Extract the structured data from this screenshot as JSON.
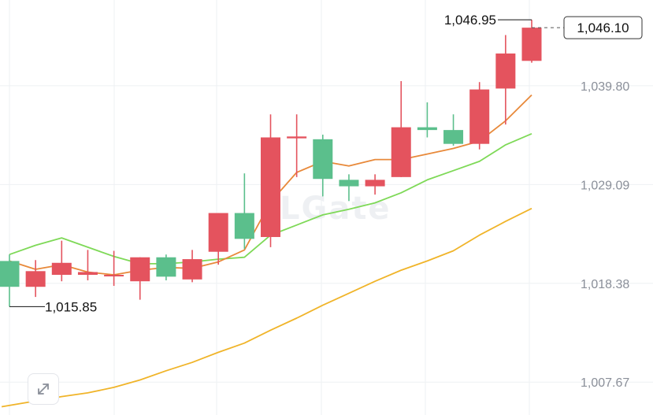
{
  "chart_data": {
    "type": "candlestick",
    "colors": {
      "up": "#e4535e",
      "down": "#5bbf8c",
      "ma_short": "#e8893a",
      "ma_mid": "#7ed957",
      "ma_long": "#f0b429",
      "grid": "#eef0f3",
      "tick_text": "#8a8f99"
    },
    "y_ticks": [
      {
        "value": 1039.8,
        "label": "1,039.80"
      },
      {
        "value": 1029.09,
        "label": "1,029.09"
      },
      {
        "value": 1018.38,
        "label": "1,018.38"
      },
      {
        "value": 1007.67,
        "label": "1,007.67"
      }
    ],
    "ylim": [
      1004.1,
      1049.1
    ],
    "candles": [
      {
        "open": 1020.8,
        "high": 1021.5,
        "low": 1015.85,
        "close": 1018.0
      },
      {
        "open": 1018.0,
        "high": 1020.9,
        "low": 1016.9,
        "close": 1019.7
      },
      {
        "open": 1019.3,
        "high": 1023.0,
        "low": 1018.6,
        "close": 1020.6
      },
      {
        "open": 1019.3,
        "high": 1022.0,
        "low": 1018.7,
        "close": 1019.6
      },
      {
        "open": 1019.2,
        "high": 1021.9,
        "low": 1018.1,
        "close": 1019.3
      },
      {
        "open": 1018.6,
        "high": 1021.2,
        "low": 1016.6,
        "close": 1021.2
      },
      {
        "open": 1021.2,
        "high": 1021.5,
        "low": 1018.7,
        "close": 1019.1
      },
      {
        "open": 1018.8,
        "high": 1022.0,
        "low": 1018.5,
        "close": 1021.0
      },
      {
        "open": 1021.8,
        "high": 1026.0,
        "low": 1020.4,
        "close": 1026.0
      },
      {
        "open": 1026.0,
        "high": 1030.3,
        "low": 1022.1,
        "close": 1023.2
      },
      {
        "open": 1023.4,
        "high": 1036.7,
        "low": 1022.3,
        "close": 1034.2
      },
      {
        "open": 1034.1,
        "high": 1036.7,
        "low": 1029.9,
        "close": 1034.3
      },
      {
        "open": 1034.0,
        "high": 1034.5,
        "low": 1027.8,
        "close": 1029.7
      },
      {
        "open": 1029.6,
        "high": 1030.2,
        "low": 1027.3,
        "close": 1028.9
      },
      {
        "open": 1028.9,
        "high": 1030.2,
        "low": 1028.0,
        "close": 1029.6
      },
      {
        "open": 1029.9,
        "high": 1040.3,
        "low": 1029.9,
        "close": 1035.3
      },
      {
        "open": 1035.3,
        "high": 1038.0,
        "low": 1034.2,
        "close": 1035.0
      },
      {
        "open": 1035.0,
        "high": 1036.7,
        "low": 1033.3,
        "close": 1033.5
      },
      {
        "open": 1033.5,
        "high": 1040.2,
        "low": 1032.9,
        "close": 1039.4
      },
      {
        "open": 1039.5,
        "high": 1045.3,
        "low": 1035.6,
        "close": 1043.3
      },
      {
        "open": 1042.5,
        "high": 1046.95,
        "low": 1042.3,
        "close": 1046.1
      }
    ],
    "ma_short": [
      1020.8,
      1019.9,
      1020.4,
      1019.6,
      1019.3,
      1019.8,
      1020.1,
      1020.0,
      1020.7,
      1022.0,
      1027.2,
      1030.4,
      1031.6,
      1031.1,
      1031.8,
      1031.8,
      1032.4,
      1033.0,
      1033.8,
      1036.0,
      1038.8
    ],
    "ma_mid": [
      1021.5,
      1022.5,
      1023.3,
      1022.3,
      1021.3,
      1020.5,
      1020.5,
      1020.7,
      1021.0,
      1021.2,
      1023.6,
      1024.7,
      1025.8,
      1026.4,
      1027.1,
      1028.2,
      1029.6,
      1030.6,
      1031.6,
      1033.4,
      1034.6
    ],
    "ma_long_x": [
      -0.3,
      2.0,
      3.0,
      4.0,
      5.0,
      6.0,
      7.0,
      8.0,
      9.0,
      10.0,
      11.0,
      12.0,
      13.0,
      14.0,
      15.0,
      16.0,
      17.0,
      18.0,
      19.0,
      20.0
    ],
    "ma_long": [
      1005.0,
      1006.1,
      1006.5,
      1007.1,
      1007.9,
      1008.9,
      1009.8,
      1010.9,
      1011.9,
      1013.3,
      1014.6,
      1016.0,
      1017.3,
      1018.6,
      1019.8,
      1020.8,
      1021.9,
      1023.6,
      1025.1,
      1026.5
    ],
    "annotations": {
      "last_price": {
        "value": 1046.1,
        "label": "1,046.10"
      },
      "high": {
        "index": 20,
        "value": 1046.95,
        "label": "1,046.95"
      },
      "low": {
        "index": 0,
        "value": 1015.85,
        "label": "1,015.85"
      }
    }
  },
  "controls": {
    "expand_icon": "expand-arrows-icon"
  }
}
